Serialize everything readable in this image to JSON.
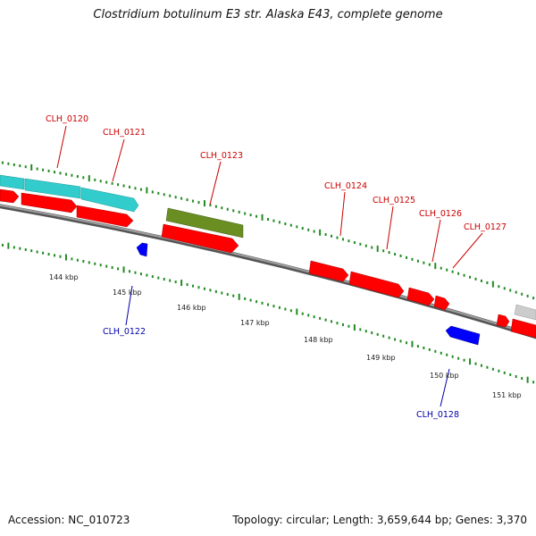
{
  "header": {
    "title": "Clostridium botulinum E3 str. Alaska E43, complete genome"
  },
  "footer": {
    "accession": "Accession: NC_010723",
    "summary": "Topology: circular; Length: 3,659,644 bp; Genes: 3,370"
  },
  "colors": {
    "forward_gene": "#ff0000",
    "reverse_gene": "#0000ff",
    "highlight_cyan": "#33cccc",
    "highlight_olive": "#6b8e23",
    "other_gene": "#cccccc",
    "backbone": "#808080",
    "tick": "#228b22",
    "label_forward": "#cc0000",
    "label_reverse": "#0000aa"
  },
  "ticks": [
    {
      "label": "144 kbp"
    },
    {
      "label": "145 kbp"
    },
    {
      "label": "146 kbp"
    },
    {
      "label": "147 kbp"
    },
    {
      "label": "148 kbp"
    },
    {
      "label": "149 kbp"
    },
    {
      "label": "150 kbp"
    },
    {
      "label": "151 kbp"
    }
  ],
  "gene_labels": [
    {
      "name": "CLH_0120",
      "strand": "forward"
    },
    {
      "name": "CLH_0121",
      "strand": "forward"
    },
    {
      "name": "CLH_0122",
      "strand": "reverse"
    },
    {
      "name": "CLH_0123",
      "strand": "forward"
    },
    {
      "name": "CLH_0124",
      "strand": "forward"
    },
    {
      "name": "CLH_0125",
      "strand": "forward"
    },
    {
      "name": "CLH_0126",
      "strand": "forward"
    },
    {
      "name": "CLH_0127",
      "strand": "forward"
    },
    {
      "name": "CLH_0128",
      "strand": "reverse"
    }
  ]
}
